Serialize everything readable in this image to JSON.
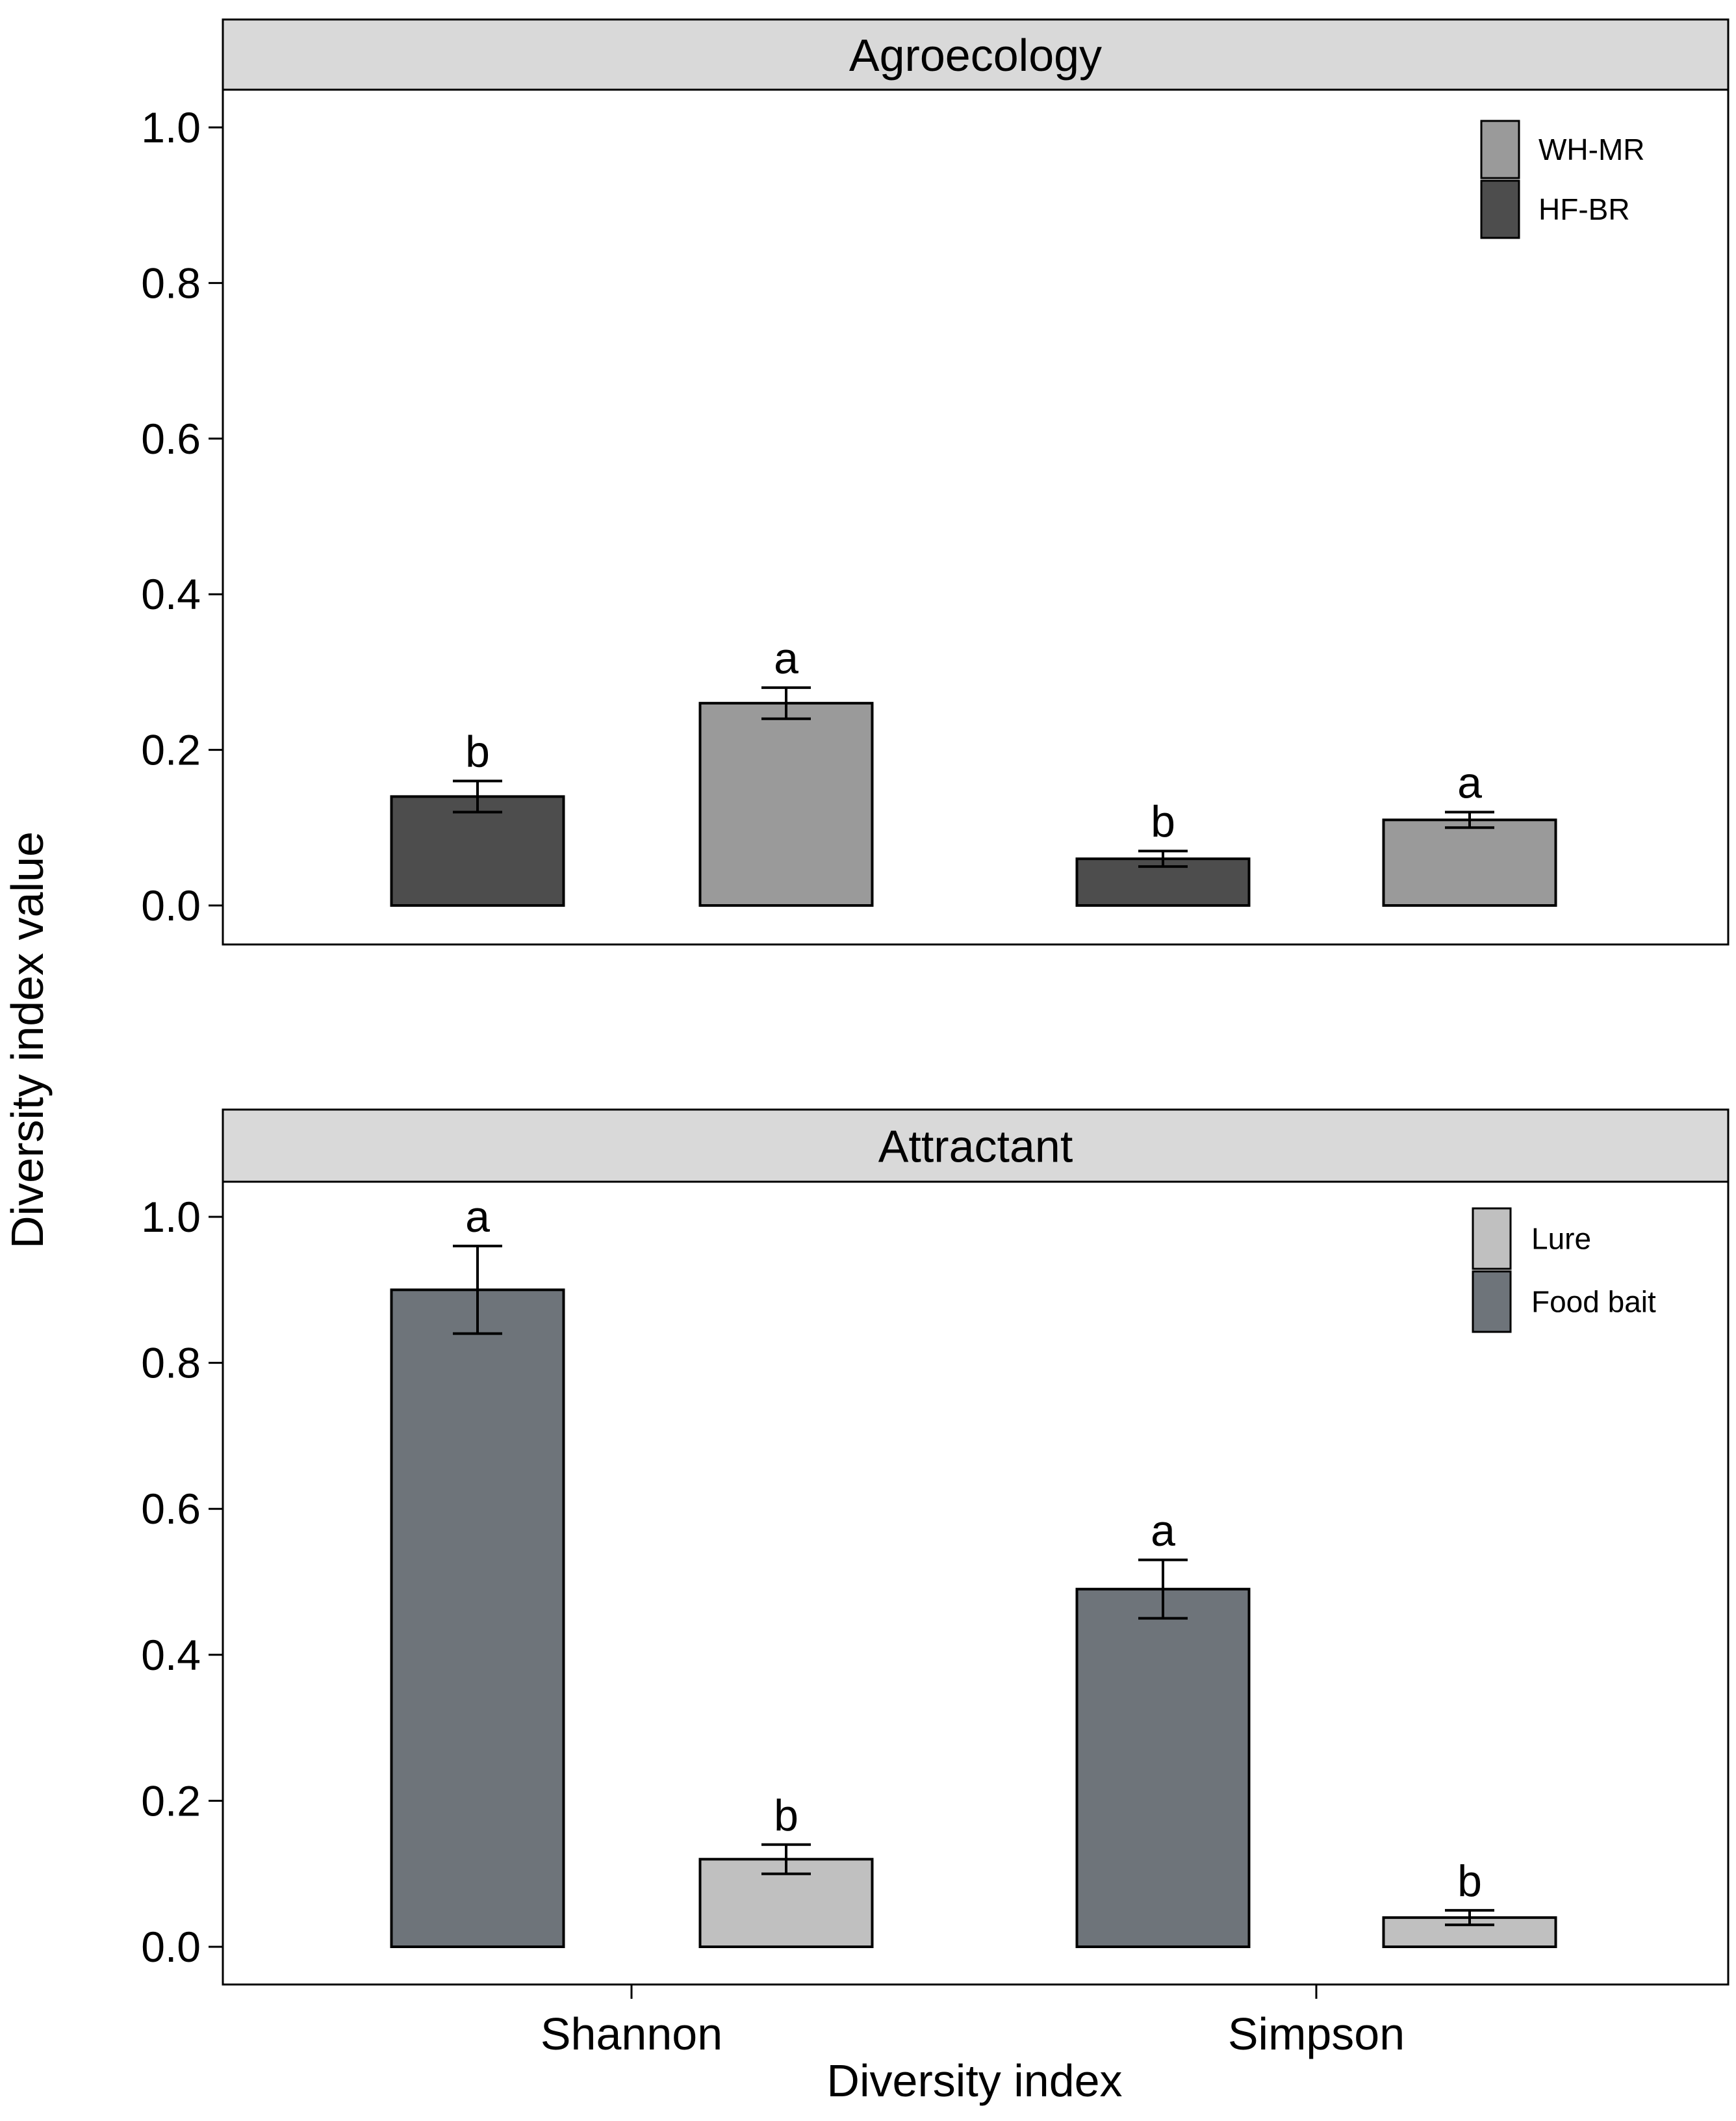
{
  "figure": {
    "ylabel": "Diversity index value",
    "xlabel": "Diversity index"
  },
  "chart_data": [
    {
      "type": "bar",
      "title": "Agroecology",
      "categories": [
        "Shannon",
        "Simpson"
      ],
      "ylim": [
        0,
        1.05
      ],
      "yticks": [
        "0.0",
        "0.2",
        "0.4",
        "0.6",
        "0.8",
        "1.0"
      ],
      "series": [
        {
          "name": "HF-BR",
          "color": "#4d4d4d",
          "values": [
            0.14,
            0.06
          ],
          "errors": [
            0.02,
            0.01
          ],
          "labels": [
            "b",
            "b"
          ]
        },
        {
          "name": "WH-MR",
          "color": "#9a9a9a",
          "values": [
            0.26,
            0.11
          ],
          "errors": [
            0.02,
            0.01
          ],
          "labels": [
            "a",
            "a"
          ]
        }
      ],
      "legend": [
        "WH-MR",
        "HF-BR"
      ],
      "legend_position": "top-right"
    },
    {
      "type": "bar",
      "title": "Attractant",
      "categories": [
        "Shannon",
        "Simpson"
      ],
      "ylim": [
        0,
        1.05
      ],
      "yticks": [
        "0.0",
        "0.2",
        "0.4",
        "0.6",
        "0.8",
        "1.0"
      ],
      "series": [
        {
          "name": "Food bait",
          "color": "#6e747a",
          "values": [
            0.9,
            0.49
          ],
          "errors": [
            0.06,
            0.04
          ],
          "labels": [
            "a",
            "a"
          ]
        },
        {
          "name": "Lure",
          "color": "#c0c0c0",
          "values": [
            0.12,
            0.04
          ],
          "errors": [
            0.02,
            0.01
          ],
          "labels": [
            "b",
            "b"
          ]
        }
      ],
      "legend": [
        "Lure",
        "Food bait"
      ],
      "legend_position": "top-right"
    }
  ]
}
